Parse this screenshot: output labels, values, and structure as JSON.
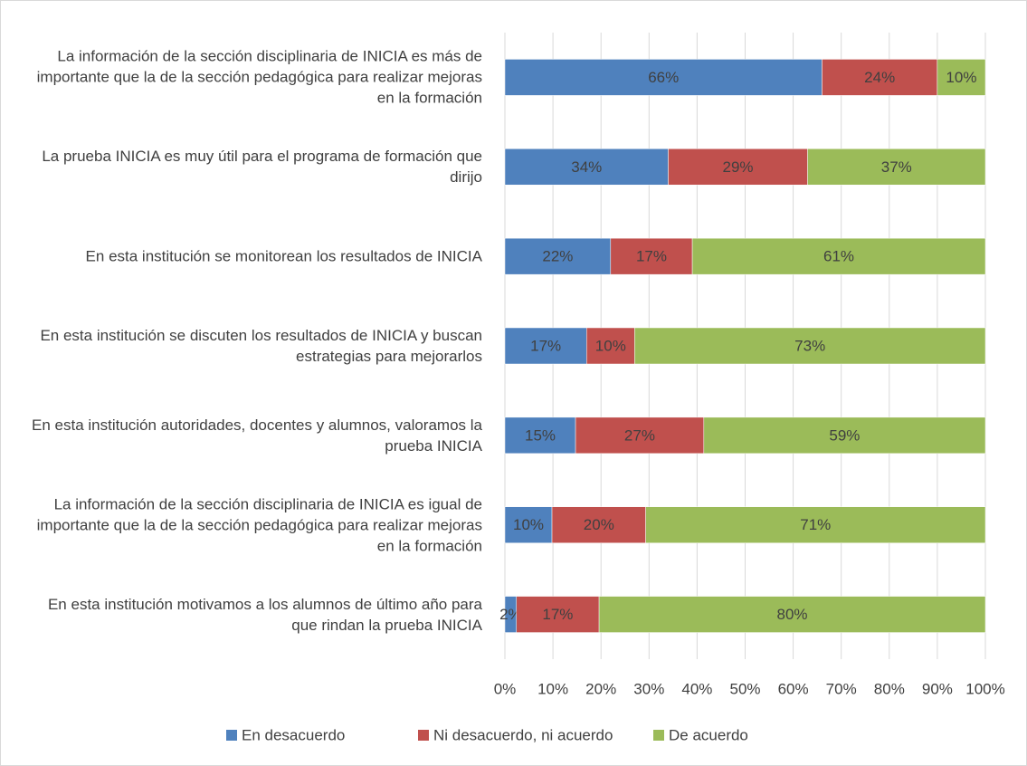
{
  "chart_data": {
    "type": "stacked_barh",
    "categories": [
      "La información de la sección disciplinaria de INICIA es más de importante que la de la sección pedagógica para realizar mejoras en la formación",
      "La prueba INICIA es muy útil para el programa de formación que dirijo",
      "En esta institución se monitorean los resultados de INICIA",
      "En esta institución se discuten los resultados de INICIA y buscan estrategias para mejorarlos",
      "En esta institución autoridades, docentes y alumnos, valoramos la prueba INICIA",
      "La información de la sección disciplinaria de INICIA es igual de importante que la de la sección pedagógica para realizar mejoras en la formación",
      "En esta institución motivamos a los alumnos de último año para que rindan la prueba INICIA"
    ],
    "series": [
      {
        "name": "En desacuerdo",
        "color": "#4f81bd",
        "values": [
          66,
          34,
          22,
          17,
          14.7,
          9.8,
          2.4
        ],
        "value_labels": [
          "66%",
          "34%",
          "22%",
          "17%",
          "15%",
          "10%",
          "2%"
        ]
      },
      {
        "name": "Ni desacuerdo, ni acuerdo",
        "color": "#c0504d",
        "values": [
          24,
          29,
          17,
          10,
          26.7,
          19.5,
          17.2
        ],
        "value_labels": [
          "24%",
          "29%",
          "17%",
          "10%",
          "27%",
          "20%",
          "17%"
        ]
      },
      {
        "name": "De acuerdo",
        "color": "#9bbb59",
        "values": [
          10,
          37,
          61,
          73,
          58.6,
          70.7,
          80.4
        ],
        "value_labels": [
          "10%",
          "37%",
          "61%",
          "73%",
          "59%",
          "71%",
          "80%"
        ]
      }
    ],
    "xlim": [
      0,
      100
    ],
    "xticks": [
      {
        "value": 0,
        "label": "0%"
      },
      {
        "value": 10,
        "label": "10%"
      },
      {
        "value": 20,
        "label": "20%"
      },
      {
        "value": 30,
        "label": "30%"
      },
      {
        "value": 40,
        "label": "40%"
      },
      {
        "value": 50,
        "label": "50%"
      },
      {
        "value": 60,
        "label": "60%"
      },
      {
        "value": 70,
        "label": "70%"
      },
      {
        "value": 80,
        "label": "80%"
      },
      {
        "value": 90,
        "label": "90%"
      },
      {
        "value": 100,
        "label": "100%"
      }
    ],
    "grid": true,
    "legend": "bottom"
  }
}
